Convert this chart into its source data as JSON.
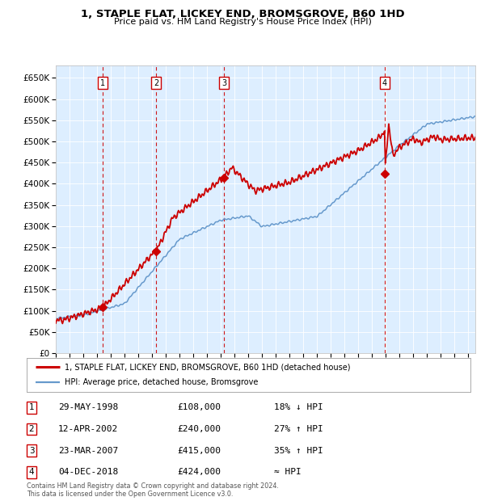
{
  "title": "1, STAPLE FLAT, LICKEY END, BROMSGROVE, B60 1HD",
  "subtitle": "Price paid vs. HM Land Registry's House Price Index (HPI)",
  "legend_property": "1, STAPLE FLAT, LICKEY END, BROMSGROVE, B60 1HD (detached house)",
  "legend_hpi": "HPI: Average price, detached house, Bromsgrove",
  "footnote1": "Contains HM Land Registry data © Crown copyright and database right 2024.",
  "footnote2": "This data is licensed under the Open Government Licence v3.0.",
  "transactions": [
    {
      "num": 1,
      "date": "29-MAY-1998",
      "price": 108000,
      "hpi_rel": "18% ↓ HPI",
      "year": 1998.42
    },
    {
      "num": 2,
      "date": "12-APR-2002",
      "price": 240000,
      "hpi_rel": "27% ↑ HPI",
      "year": 2002.28
    },
    {
      "num": 3,
      "date": "23-MAR-2007",
      "price": 415000,
      "hpi_rel": "35% ↑ HPI",
      "year": 2007.22
    },
    {
      "num": 4,
      "date": "04-DEC-2018",
      "price": 424000,
      "hpi_rel": "≈ HPI",
      "year": 2018.92
    }
  ],
  "property_color": "#cc0000",
  "hpi_color": "#6699cc",
  "background_color": "#ddeeff",
  "vline_color": "#cc0000",
  "ylim": [
    0,
    680000
  ],
  "yticks": [
    0,
    50000,
    100000,
    150000,
    200000,
    250000,
    300000,
    350000,
    400000,
    450000,
    500000,
    550000,
    600000,
    650000
  ],
  "xlim_start": 1995.0,
  "xlim_end": 2025.5
}
